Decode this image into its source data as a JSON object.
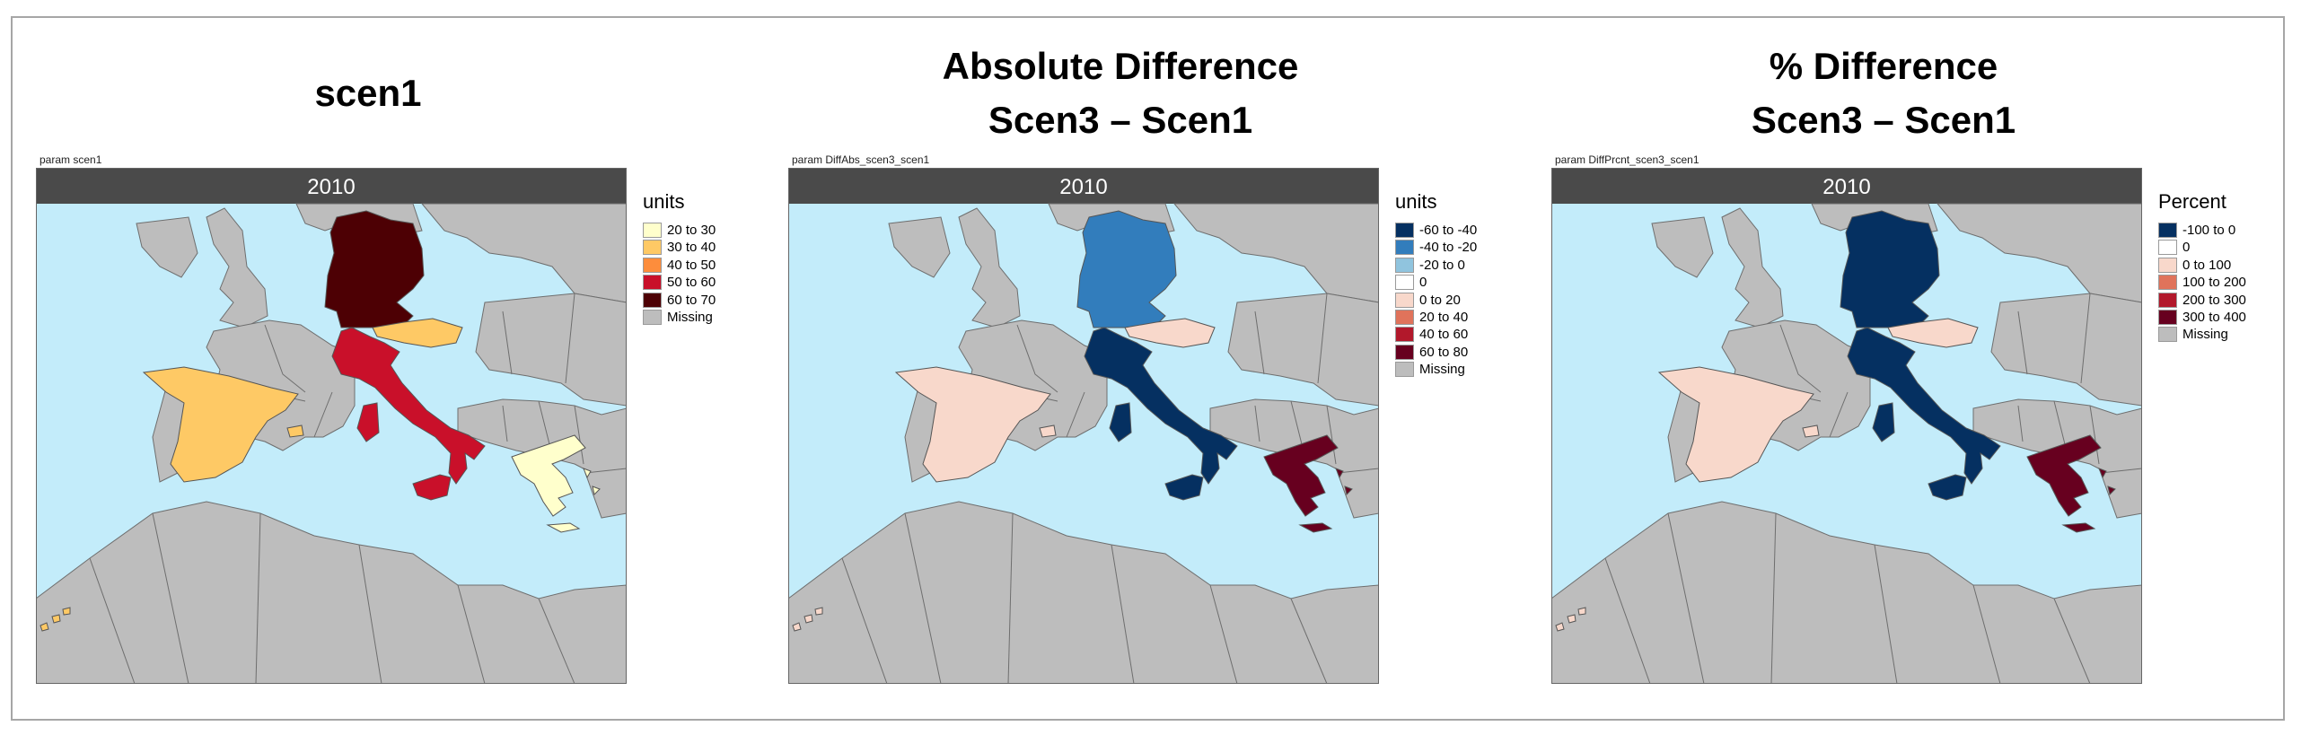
{
  "colors": {
    "sea": "#c3ecfa",
    "land": "#bdbdbd",
    "border": "#6e6e6e",
    "strip": "#4a4a4a",
    "strip_text": "#ffffff"
  },
  "panels": [
    {
      "title_lines": [
        "scen1"
      ],
      "param": "param scen1",
      "strip": "2010",
      "legend_title": "units",
      "legend": [
        {
          "label": "20 to 30",
          "color": "#ffffcc"
        },
        {
          "label": "30 to 40",
          "color": "#fec965"
        },
        {
          "label": "40 to 50",
          "color": "#fd8d3c"
        },
        {
          "label": "50 to 60",
          "color": "#c9102a"
        },
        {
          "label": "60 to 70",
          "color": "#4d0004"
        },
        {
          "label": "Missing",
          "color": "#bdbdbd"
        }
      ],
      "countries": {
        "germany": "#4d0004",
        "austria": "#fec965",
        "italy": "#c9102a",
        "spain": "#fec965",
        "greece": "#ffffcc",
        "canary": "#fec965"
      }
    },
    {
      "title_lines": [
        "Absolute Difference",
        "Scen3 – Scen1"
      ],
      "param": "param DiffAbs_scen3_scen1",
      "strip": "2010",
      "legend_title": "units",
      "legend": [
        {
          "label": "-60 to -40",
          "color": "#053061"
        },
        {
          "label": "-40 to -20",
          "color": "#327dbc"
        },
        {
          "label": "-20 to 0",
          "color": "#90c4de"
        },
        {
          "label": "0",
          "color": "#ffffff"
        },
        {
          "label": "0 to 20",
          "color": "#f8d8cb"
        },
        {
          "label": "20 to 40",
          "color": "#e0735b"
        },
        {
          "label": "40 to 60",
          "color": "#b2182b"
        },
        {
          "label": "60 to 80",
          "color": "#67001f"
        },
        {
          "label": "Missing",
          "color": "#bdbdbd"
        }
      ],
      "countries": {
        "germany": "#327dbc",
        "austria": "#f8d8cb",
        "italy": "#053061",
        "spain": "#f8d8cb",
        "greece": "#67001f",
        "canary": "#f8d8cb"
      }
    },
    {
      "title_lines": [
        "% Difference",
        "Scen3 – Scen1"
      ],
      "param": "param DiffPrcnt_scen3_scen1",
      "strip": "2010",
      "legend_title": "Percent",
      "legend": [
        {
          "label": "-100 to 0",
          "color": "#053061"
        },
        {
          "label": "0",
          "color": "#ffffff"
        },
        {
          "label": "0 to 100",
          "color": "#f8d8cb"
        },
        {
          "label": "100 to 200",
          "color": "#e0735b"
        },
        {
          "label": "200 to 300",
          "color": "#b2182b"
        },
        {
          "label": "300 to 400",
          "color": "#67001f"
        },
        {
          "label": "Missing",
          "color": "#bdbdbd"
        }
      ],
      "countries": {
        "germany": "#053061",
        "austria": "#f8d8cb",
        "italy": "#053061",
        "spain": "#f8d8cb",
        "greece": "#67001f",
        "canary": "#f8d8cb"
      }
    }
  ]
}
